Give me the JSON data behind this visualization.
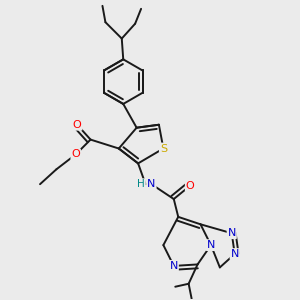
{
  "bg_color": "#ebebeb",
  "atom_colors": {
    "C": "#000000",
    "N": "#0000cc",
    "O": "#ff0000",
    "S": "#ccaa00",
    "H": "#008888"
  },
  "bond_color": "#1a1a1a",
  "bond_width": 1.4,
  "fig_width": 3.0,
  "fig_height": 3.0,
  "dpi": 100
}
